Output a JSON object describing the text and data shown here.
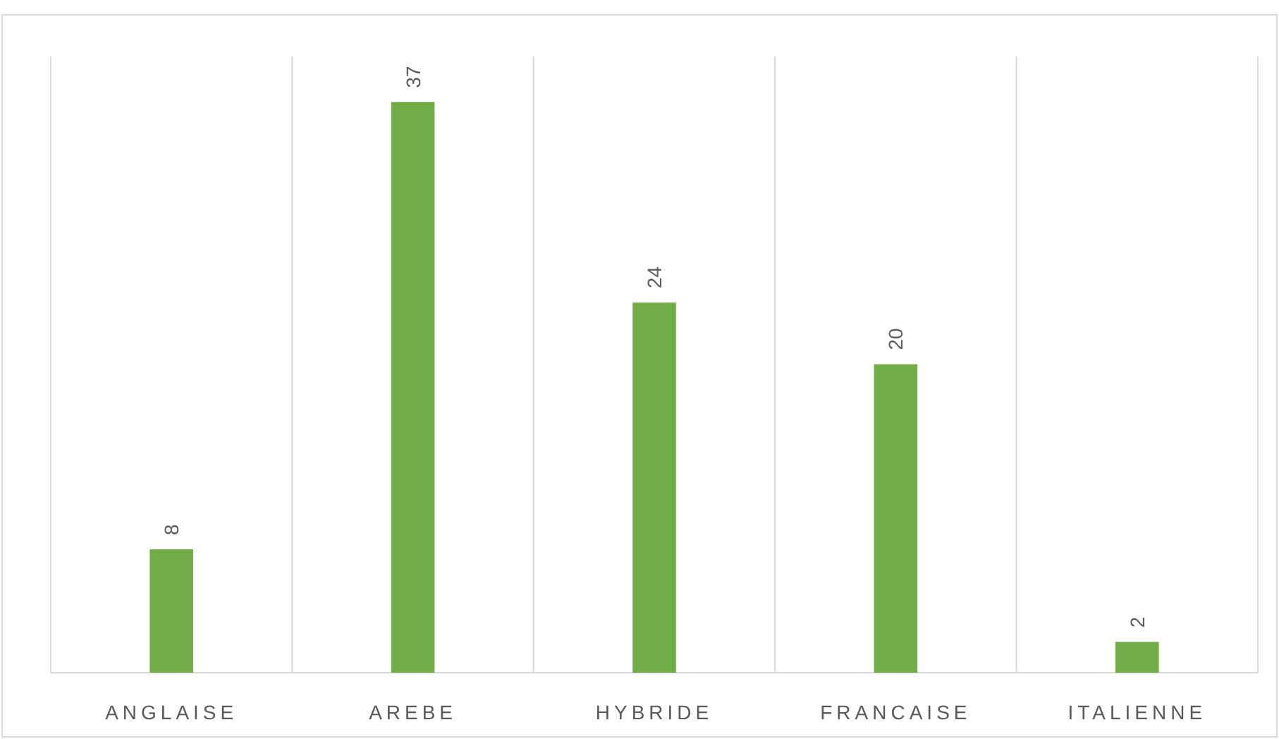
{
  "chart_data": {
    "type": "bar",
    "categories": [
      "ANGLAISE",
      "AREBE",
      "HYBRIDE",
      "FRANCAISE",
      "ITALIENNE"
    ],
    "values": [
      8,
      37,
      24,
      20,
      2
    ],
    "color": "#70ad47",
    "data_labels": true,
    "grid": "x"
  }
}
